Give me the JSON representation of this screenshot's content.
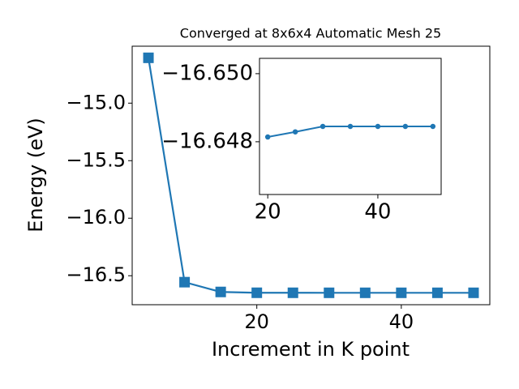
{
  "chart_data": [
    {
      "type": "line",
      "title": "Converged at 8x6x4 Automatic Mesh 25",
      "xlabel": "Increment in K point",
      "ylabel": "Energy (eV)",
      "marker": "square",
      "x": [
        5,
        10,
        15,
        20,
        25,
        30,
        35,
        40,
        45,
        50
      ],
      "series": [
        {
          "name": null,
          "color": "#1f77b4",
          "values": [
            -14.606,
            -16.556,
            -16.641,
            -16.64814,
            -16.64829,
            -16.64845,
            -16.64845,
            -16.64845,
            -16.64845,
            -16.64845
          ]
        }
      ],
      "xlim": [
        2.75,
        52.25
      ],
      "xticks": [
        20,
        40
      ],
      "ylim": [
        -16.752,
        -14.505
      ],
      "yticks": [
        {
          "value": -15.0,
          "label": "−15.0"
        },
        {
          "value": -15.5,
          "label": "−15.5"
        },
        {
          "value": -16.0,
          "label": "−16.0"
        },
        {
          "value": -16.5,
          "label": "−16.5"
        }
      ]
    },
    {
      "type": "line",
      "marker": "circle",
      "x": [
        20,
        25,
        30,
        35,
        40,
        45,
        50
      ],
      "series": [
        {
          "name": null,
          "color": "#1f77b4",
          "values": [
            -16.64814,
            -16.64829,
            -16.64845,
            -16.64845,
            -16.64845,
            -16.64845,
            -16.64845
          ]
        }
      ],
      "xlim": [
        18.5,
        51.5
      ],
      "xticks": [
        20,
        40
      ],
      "ylim": [
        -16.64645,
        -16.65045
      ],
      "yticks": [
        {
          "value": -16.65,
          "label": "−16.650"
        },
        {
          "value": -16.648,
          "label": "−16.648"
        }
      ]
    }
  ]
}
